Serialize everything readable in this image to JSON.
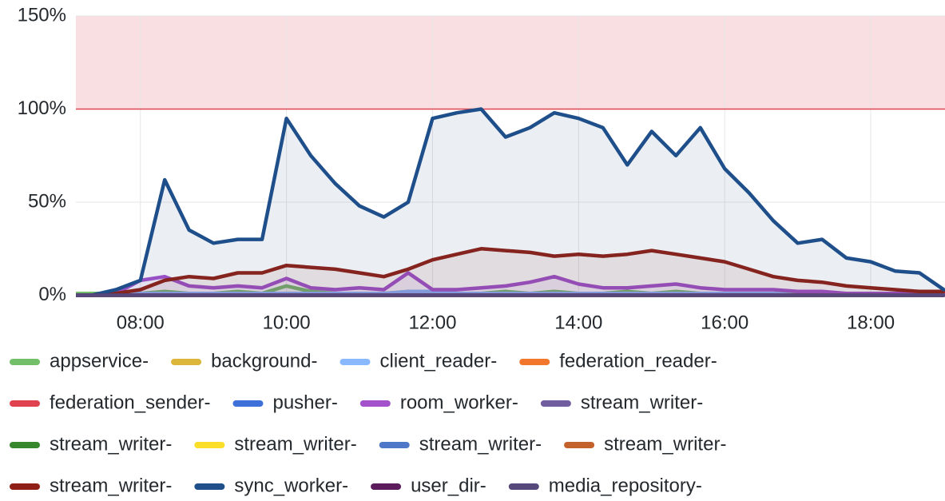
{
  "chart_data": {
    "type": "line",
    "x": [
      "07:00",
      "07:20",
      "07:40",
      "08:00",
      "08:20",
      "08:40",
      "09:00",
      "09:20",
      "09:40",
      "10:00",
      "10:20",
      "10:40",
      "11:00",
      "11:20",
      "11:40",
      "12:00",
      "12:20",
      "12:40",
      "13:00",
      "13:20",
      "13:40",
      "14:00",
      "14:20",
      "14:40",
      "15:00",
      "15:20",
      "15:40",
      "16:00",
      "16:20",
      "16:40",
      "17:00",
      "17:20",
      "17:40",
      "18:00",
      "18:20",
      "18:40",
      "19:00"
    ],
    "xlim": [
      "07:07",
      "19:01"
    ],
    "xticks": [
      "08:00",
      "10:00",
      "12:00",
      "14:00",
      "16:00",
      "18:00"
    ],
    "ylim": [
      0,
      150
    ],
    "yticks": [
      {
        "value": 0,
        "label": "0%"
      },
      {
        "value": 50,
        "label": "50%"
      },
      {
        "value": 100,
        "label": "100%"
      },
      {
        "value": 150,
        "label": "150%"
      }
    ],
    "threshold": 100,
    "grid": true,
    "legend": "bottom",
    "series": [
      {
        "name": "appservice-",
        "color": "#73bf69",
        "values": [
          1,
          1,
          1,
          1,
          2,
          1,
          1,
          2,
          1,
          5,
          2,
          1,
          1,
          1,
          2,
          2,
          1,
          1,
          2,
          1,
          2,
          1,
          1,
          2,
          1,
          2,
          1,
          1,
          1,
          1,
          1,
          1,
          1,
          1,
          1,
          1,
          1
        ]
      },
      {
        "name": "background-",
        "color": "#dcb63b",
        "values": [
          0,
          0,
          0,
          0,
          0,
          0,
          0,
          0,
          0,
          0,
          0,
          0,
          0,
          0,
          0,
          0,
          0,
          0,
          0,
          0,
          0,
          0,
          0,
          0,
          0,
          0,
          0,
          0,
          0,
          0,
          0,
          0,
          0,
          0,
          0,
          0,
          0
        ]
      },
      {
        "name": "client_reader-",
        "color": "#8ab8ff",
        "values": [
          0,
          0,
          0,
          1,
          1,
          1,
          1,
          1,
          1,
          1,
          1,
          1,
          1,
          1,
          2,
          2,
          1,
          1,
          1,
          1,
          1,
          1,
          1,
          1,
          1,
          1,
          1,
          1,
          1,
          1,
          0,
          0,
          0,
          0,
          0,
          0,
          0
        ]
      },
      {
        "name": "federation_reader-",
        "color": "#f2762b",
        "values": [
          0,
          0,
          0,
          0,
          0,
          0,
          0,
          0,
          0,
          0,
          0,
          0,
          0,
          0,
          0,
          0,
          0,
          0,
          0,
          0,
          0,
          0,
          0,
          0,
          0,
          0,
          0,
          0,
          0,
          0,
          0,
          0,
          0,
          0,
          0,
          0,
          0
        ]
      },
      {
        "name": "federation_sender-",
        "color": "#e0434f",
        "values": [
          0,
          0,
          0,
          0,
          0,
          0,
          0,
          0,
          0,
          0,
          0,
          0,
          0,
          0,
          0,
          0,
          0,
          0,
          0,
          0,
          0,
          0,
          0,
          0,
          0,
          0,
          0,
          0,
          0,
          0,
          0,
          0,
          0,
          0,
          0,
          0,
          0
        ]
      },
      {
        "name": "pusher-",
        "color": "#3d71d9",
        "values": [
          0,
          0,
          0,
          0,
          0,
          0,
          0,
          0,
          0,
          0,
          0,
          0,
          0,
          0,
          0,
          0,
          0,
          0,
          0,
          0,
          0,
          0,
          0,
          0,
          0,
          0,
          0,
          0,
          0,
          0,
          0,
          0,
          0,
          0,
          0,
          0,
          0
        ]
      },
      {
        "name": "room_worker-",
        "color": "#a352cc",
        "values": [
          0,
          0,
          1,
          8,
          10,
          5,
          4,
          5,
          4,
          9,
          4,
          3,
          4,
          3,
          12,
          3,
          3,
          4,
          5,
          7,
          10,
          6,
          4,
          4,
          5,
          6,
          4,
          3,
          3,
          3,
          2,
          2,
          1,
          1,
          1,
          1,
          1
        ]
      },
      {
        "name": "stream_writer-",
        "color": "#705da0",
        "values": [
          0,
          0,
          0,
          0,
          0,
          0,
          0,
          0,
          0,
          0,
          0,
          0,
          0,
          0,
          0,
          0,
          0,
          0,
          0,
          0,
          0,
          0,
          0,
          0,
          0,
          0,
          0,
          0,
          0,
          0,
          0,
          0,
          0,
          0,
          0,
          0,
          0
        ]
      },
      {
        "name": "stream_writer-",
        "color": "#37872d",
        "values": [
          0,
          0,
          0,
          0,
          0,
          0,
          0,
          0,
          0,
          0,
          0,
          0,
          0,
          0,
          0,
          0,
          0,
          0,
          0,
          0,
          0,
          0,
          0,
          0,
          0,
          0,
          0,
          0,
          0,
          0,
          0,
          0,
          0,
          0,
          0,
          0,
          0
        ]
      },
      {
        "name": "stream_writer-",
        "color": "#fade2a",
        "values": [
          0,
          0,
          0,
          0,
          0,
          0,
          0,
          0,
          0,
          0,
          0,
          0,
          0,
          0,
          0,
          0,
          0,
          0,
          0,
          0,
          0,
          0,
          0,
          0,
          0,
          0,
          0,
          0,
          0,
          0,
          0,
          0,
          0,
          0,
          0,
          0,
          0
        ]
      },
      {
        "name": "stream_writer-",
        "color": "#5078c8",
        "values": [
          0,
          0,
          0,
          0,
          0,
          0,
          0,
          0,
          0,
          0,
          0,
          0,
          0,
          0,
          0,
          0,
          0,
          0,
          0,
          0,
          0,
          0,
          0,
          0,
          0,
          0,
          0,
          0,
          0,
          0,
          0,
          0,
          0,
          0,
          0,
          0,
          0
        ]
      },
      {
        "name": "stream_writer-",
        "color": "#c4622d",
        "values": [
          0,
          0,
          0,
          0,
          0,
          0,
          0,
          0,
          0,
          0,
          0,
          0,
          0,
          0,
          0,
          0,
          0,
          0,
          0,
          0,
          0,
          0,
          0,
          0,
          0,
          0,
          0,
          0,
          0,
          0,
          0,
          0,
          0,
          0,
          0,
          0,
          0
        ]
      },
      {
        "name": "stream_writer-",
        "color": "#8f1f14",
        "values": [
          0,
          0,
          1,
          3,
          8,
          10,
          9,
          12,
          12,
          16,
          15,
          14,
          12,
          10,
          14,
          19,
          22,
          25,
          24,
          23,
          21,
          22,
          21,
          22,
          24,
          22,
          20,
          18,
          14,
          10,
          8,
          7,
          5,
          4,
          3,
          2,
          2
        ]
      },
      {
        "name": "sync_worker-",
        "color": "#1f4f8a",
        "values": [
          0,
          0,
          3,
          8,
          62,
          35,
          28,
          30,
          30,
          95,
          75,
          60,
          48,
          42,
          50,
          95,
          98,
          100,
          85,
          90,
          98,
          95,
          90,
          70,
          88,
          75,
          90,
          68,
          55,
          40,
          28,
          30,
          20,
          18,
          13,
          12,
          3
        ]
      },
      {
        "name": "user_dir-",
        "color": "#5c1c5c",
        "values": [
          0,
          0,
          0,
          0,
          0,
          0,
          0,
          0,
          0,
          0,
          0,
          0,
          0,
          0,
          0,
          0,
          0,
          0,
          0,
          0,
          0,
          0,
          0,
          0,
          0,
          0,
          0,
          0,
          0,
          0,
          0,
          0,
          0,
          0,
          0,
          0,
          0
        ]
      },
      {
        "name": "media_repository-",
        "color": "#56487a",
        "values": [
          0,
          0,
          0,
          0,
          0,
          0,
          0,
          0,
          0,
          0,
          0,
          0,
          0,
          0,
          0,
          0,
          0,
          0,
          0,
          0,
          0,
          0,
          0,
          0,
          0,
          0,
          0,
          0,
          0,
          0,
          0,
          0,
          0,
          0,
          0,
          0,
          0
        ]
      }
    ]
  }
}
